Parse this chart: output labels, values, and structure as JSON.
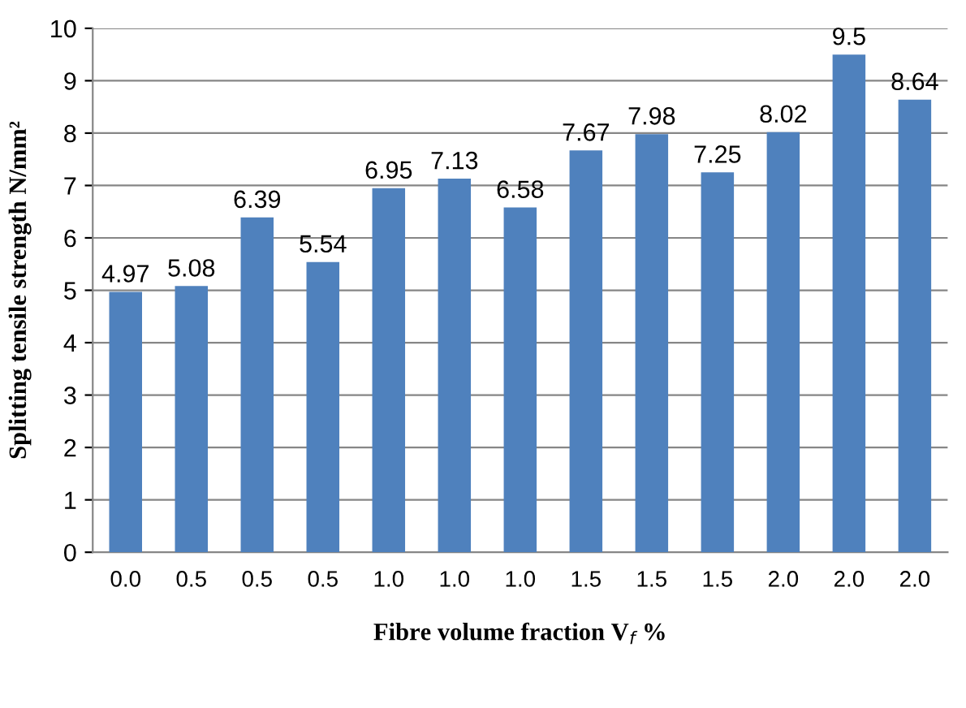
{
  "chart_data": {
    "type": "bar",
    "xlabel": "Fibre volume fraction V$_{f}$ %",
    "ylabel": "Splitting tensile strength N/mm²",
    "categories": [
      "0.0",
      "0.5",
      "0.5",
      "0.5",
      "1.0",
      "1.0",
      "1.0",
      "1.5",
      "1.5",
      "1.5",
      "2.0",
      "2.0",
      "2.0"
    ],
    "values": [
      4.97,
      5.08,
      6.39,
      5.54,
      6.95,
      7.13,
      6.58,
      7.67,
      7.98,
      7.25,
      8.02,
      9.5,
      8.64
    ],
    "color": "#4f81bd",
    "ylim": [
      0,
      10
    ],
    "yticks": [
      0,
      1,
      2,
      3,
      4,
      5,
      6,
      7,
      8,
      9,
      10
    ],
    "grid": "y",
    "data_labels": true
  }
}
